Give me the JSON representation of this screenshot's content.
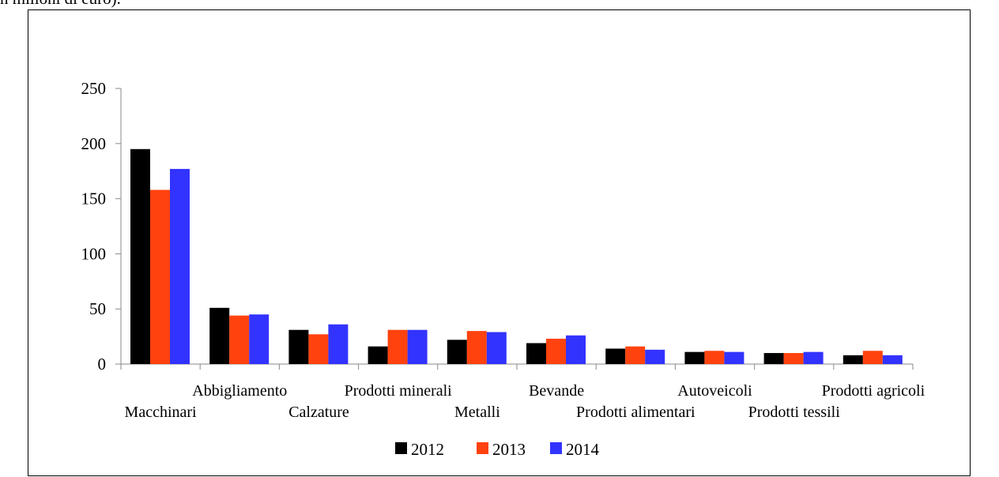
{
  "header": {
    "text": "n milioni di euro)."
  },
  "chart_data": {
    "type": "bar",
    "categories": [
      "Macchinari",
      "Abbigliamento",
      "Calzature",
      "Prodotti minerali",
      "Metalli",
      "Bevande",
      "Prodotti alimentari",
      "Autoveicoli",
      "Prodotti tessili",
      "Prodotti agricoli"
    ],
    "series": [
      {
        "name": "2012",
        "color": "#000000",
        "values": [
          195,
          51,
          31,
          16,
          22,
          19,
          14,
          11,
          10,
          8
        ]
      },
      {
        "name": "2013",
        "color": "#ff420e",
        "values": [
          158,
          44,
          27,
          31,
          30,
          23,
          16,
          12,
          10,
          12
        ]
      },
      {
        "name": "2014",
        "color": "#3333ff",
        "values": [
          177,
          45,
          36,
          31,
          29,
          26,
          13,
          11,
          11,
          8
        ]
      }
    ],
    "yticks": [
      "0",
      "50",
      "100",
      "150",
      "200",
      "250"
    ],
    "ylim": [
      0,
      250
    ],
    "title": "",
    "xlabel": "",
    "ylabel": "",
    "grid": false,
    "legend_position": "bottom"
  }
}
